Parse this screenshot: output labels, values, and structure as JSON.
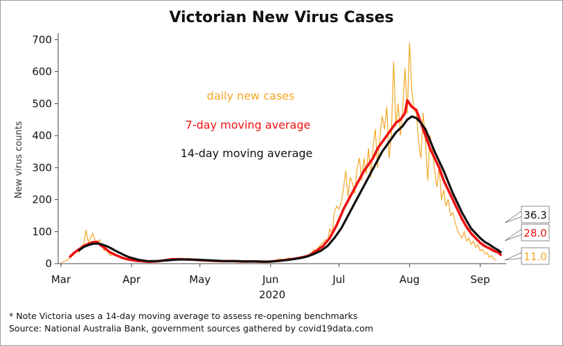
{
  "chart_data": {
    "type": "line",
    "title": "Victorian New Virus Cases",
    "ylabel": "New virus counts",
    "xlabel": "2020",
    "ylim": [
      0,
      720
    ],
    "xlim_day": [
      0,
      193
    ],
    "yticks": [
      0,
      100,
      200,
      300,
      400,
      500,
      600,
      700
    ],
    "xticks": [
      {
        "label": "Mar",
        "day": 0
      },
      {
        "label": "Apr",
        "day": 31
      },
      {
        "label": "May",
        "day": 61
      },
      {
        "label": "Jun",
        "day": 92
      },
      {
        "label": "Jul",
        "day": 122
      },
      {
        "label": "Aug",
        "day": 153
      },
      {
        "label": "Sep",
        "day": 184
      }
    ],
    "annotations": [
      {
        "text": "daily new cases",
        "color": "#f5a623"
      },
      {
        "text": "7-day moving average",
        "color": "#ee1111"
      },
      {
        "text": "14-day moving average",
        "color": "#111111"
      }
    ],
    "series": [
      {
        "name": "daily new cases",
        "color": "#f5a623",
        "points": [
          [
            0,
            3
          ],
          [
            2,
            8
          ],
          [
            4,
            18
          ],
          [
            5,
            25
          ],
          [
            6,
            30
          ],
          [
            7,
            40
          ],
          [
            8,
            35
          ],
          [
            9,
            55
          ],
          [
            10,
            60
          ],
          [
            11,
            105
          ],
          [
            12,
            68
          ],
          [
            13,
            80
          ],
          [
            14,
            95
          ],
          [
            15,
            70
          ],
          [
            16,
            65
          ],
          [
            17,
            75
          ],
          [
            18,
            60
          ],
          [
            19,
            40
          ],
          [
            20,
            50
          ],
          [
            21,
            30
          ],
          [
            22,
            25
          ],
          [
            23,
            35
          ],
          [
            24,
            28
          ],
          [
            26,
            20
          ],
          [
            28,
            14
          ],
          [
            30,
            12
          ],
          [
            32,
            9
          ],
          [
            34,
            7
          ],
          [
            36,
            6
          ],
          [
            38,
            5
          ],
          [
            40,
            8
          ],
          [
            42,
            6
          ],
          [
            44,
            7
          ],
          [
            46,
            10
          ],
          [
            48,
            14
          ],
          [
            50,
            15
          ],
          [
            52,
            14
          ],
          [
            54,
            12
          ],
          [
            56,
            17
          ],
          [
            58,
            13
          ],
          [
            60,
            12
          ],
          [
            62,
            10
          ],
          [
            64,
            10
          ],
          [
            66,
            9
          ],
          [
            68,
            8
          ],
          [
            70,
            7
          ],
          [
            72,
            8
          ],
          [
            74,
            9
          ],
          [
            76,
            7
          ],
          [
            78,
            6
          ],
          [
            80,
            8
          ],
          [
            82,
            8
          ],
          [
            84,
            7
          ],
          [
            86,
            6
          ],
          [
            88,
            5
          ],
          [
            90,
            5
          ],
          [
            92,
            8
          ],
          [
            94,
            10
          ],
          [
            96,
            15
          ],
          [
            98,
            12
          ],
          [
            100,
            18
          ],
          [
            102,
            14
          ],
          [
            104,
            20
          ],
          [
            106,
            22
          ],
          [
            108,
            25
          ],
          [
            110,
            33
          ],
          [
            111,
            45
          ],
          [
            112,
            40
          ],
          [
            113,
            50
          ],
          [
            114,
            60
          ],
          [
            115,
            65
          ],
          [
            116,
            75
          ],
          [
            117,
            70
          ],
          [
            118,
            110
          ],
          [
            119,
            90
          ],
          [
            120,
            160
          ],
          [
            121,
            180
          ],
          [
            122,
            170
          ],
          [
            123,
            190
          ],
          [
            124,
            235
          ],
          [
            125,
            290
          ],
          [
            126,
            210
          ],
          [
            127,
            270
          ],
          [
            128,
            250
          ],
          [
            129,
            220
          ],
          [
            130,
            300
          ],
          [
            131,
            330
          ],
          [
            132,
            260
          ],
          [
            133,
            330
          ],
          [
            134,
            280
          ],
          [
            135,
            360
          ],
          [
            136,
            270
          ],
          [
            137,
            370
          ],
          [
            138,
            420
          ],
          [
            139,
            300
          ],
          [
            140,
            400
          ],
          [
            141,
            460
          ],
          [
            142,
            420
          ],
          [
            143,
            490
          ],
          [
            144,
            330
          ],
          [
            145,
            400
          ],
          [
            146,
            630
          ],
          [
            147,
            430
          ],
          [
            148,
            500
          ],
          [
            149,
            400
          ],
          [
            150,
            480
          ],
          [
            151,
            610
          ],
          [
            152,
            470
          ],
          [
            153,
            690
          ],
          [
            154,
            540
          ],
          [
            155,
            480
          ],
          [
            156,
            470
          ],
          [
            157,
            380
          ],
          [
            158,
            330
          ],
          [
            159,
            470
          ],
          [
            160,
            380
          ],
          [
            161,
            260
          ],
          [
            162,
            400
          ],
          [
            163,
            360
          ],
          [
            164,
            290
          ],
          [
            165,
            240
          ],
          [
            166,
            300
          ],
          [
            167,
            200
          ],
          [
            168,
            230
          ],
          [
            169,
            180
          ],
          [
            170,
            200
          ],
          [
            171,
            150
          ],
          [
            172,
            160
          ],
          [
            173,
            130
          ],
          [
            174,
            105
          ],
          [
            175,
            90
          ],
          [
            176,
            80
          ],
          [
            177,
            100
          ],
          [
            178,
            70
          ],
          [
            179,
            80
          ],
          [
            180,
            60
          ],
          [
            181,
            70
          ],
          [
            182,
            50
          ],
          [
            183,
            60
          ],
          [
            184,
            40
          ],
          [
            185,
            45
          ],
          [
            186,
            30
          ],
          [
            187,
            35
          ],
          [
            188,
            20
          ],
          [
            189,
            25
          ],
          [
            190,
            15
          ],
          [
            191,
            11
          ]
        ]
      },
      {
        "name": "7-day moving average",
        "color": "#ee1111",
        "points": [
          [
            4,
            22
          ],
          [
            6,
            35
          ],
          [
            8,
            45
          ],
          [
            10,
            55
          ],
          [
            12,
            62
          ],
          [
            14,
            67
          ],
          [
            16,
            68
          ],
          [
            17,
            60
          ],
          [
            19,
            50
          ],
          [
            21,
            38
          ],
          [
            23,
            30
          ],
          [
            25,
            24
          ],
          [
            27,
            18
          ],
          [
            29,
            14
          ],
          [
            31,
            11
          ],
          [
            33,
            9
          ],
          [
            35,
            8
          ],
          [
            37,
            7
          ],
          [
            39,
            6
          ],
          [
            41,
            7
          ],
          [
            43,
            8
          ],
          [
            45,
            10
          ],
          [
            47,
            12
          ],
          [
            49,
            14
          ],
          [
            51,
            14
          ],
          [
            53,
            14
          ],
          [
            55,
            13
          ],
          [
            57,
            13
          ],
          [
            59,
            12
          ],
          [
            61,
            11
          ],
          [
            64,
            10
          ],
          [
            67,
            9
          ],
          [
            70,
            8
          ],
          [
            73,
            8
          ],
          [
            76,
            8
          ],
          [
            79,
            7
          ],
          [
            82,
            7
          ],
          [
            85,
            7
          ],
          [
            88,
            6
          ],
          [
            91,
            6
          ],
          [
            94,
            8
          ],
          [
            97,
            10
          ],
          [
            100,
            13
          ],
          [
            103,
            16
          ],
          [
            106,
            20
          ],
          [
            109,
            26
          ],
          [
            112,
            40
          ],
          [
            115,
            55
          ],
          [
            118,
            80
          ],
          [
            121,
            120
          ],
          [
            124,
            170
          ],
          [
            127,
            210
          ],
          [
            130,
            250
          ],
          [
            133,
            290
          ],
          [
            135,
            310
          ],
          [
            137,
            330
          ],
          [
            139,
            360
          ],
          [
            141,
            380
          ],
          [
            143,
            400
          ],
          [
            145,
            420
          ],
          [
            147,
            440
          ],
          [
            149,
            450
          ],
          [
            151,
            470
          ],
          [
            152,
            510
          ],
          [
            154,
            490
          ],
          [
            156,
            480
          ],
          [
            158,
            440
          ],
          [
            160,
            400
          ],
          [
            162,
            360
          ],
          [
            164,
            330
          ],
          [
            166,
            300
          ],
          [
            168,
            260
          ],
          [
            170,
            230
          ],
          [
            172,
            200
          ],
          [
            174,
            170
          ],
          [
            176,
            140
          ],
          [
            178,
            115
          ],
          [
            180,
            95
          ],
          [
            182,
            80
          ],
          [
            184,
            65
          ],
          [
            186,
            55
          ],
          [
            188,
            48
          ],
          [
            190,
            40
          ],
          [
            192,
            35
          ],
          [
            193,
            28
          ]
        ]
      },
      {
        "name": "14-day moving average",
        "color": "#111111",
        "points": [
          [
            8,
            42
          ],
          [
            10,
            52
          ],
          [
            12,
            58
          ],
          [
            14,
            62
          ],
          [
            16,
            63
          ],
          [
            18,
            60
          ],
          [
            20,
            55
          ],
          [
            22,
            48
          ],
          [
            24,
            40
          ],
          [
            26,
            33
          ],
          [
            28,
            26
          ],
          [
            30,
            20
          ],
          [
            32,
            16
          ],
          [
            34,
            12
          ],
          [
            36,
            10
          ],
          [
            38,
            8
          ],
          [
            40,
            8
          ],
          [
            42,
            8
          ],
          [
            44,
            9
          ],
          [
            46,
            10
          ],
          [
            48,
            11
          ],
          [
            50,
            12
          ],
          [
            52,
            13
          ],
          [
            54,
            13
          ],
          [
            56,
            13
          ],
          [
            58,
            12
          ],
          [
            60,
            12
          ],
          [
            63,
            11
          ],
          [
            66,
            10
          ],
          [
            69,
            9
          ],
          [
            72,
            8
          ],
          [
            75,
            8
          ],
          [
            78,
            8
          ],
          [
            81,
            7
          ],
          [
            84,
            7
          ],
          [
            87,
            7
          ],
          [
            90,
            6
          ],
          [
            93,
            7
          ],
          [
            96,
            9
          ],
          [
            99,
            11
          ],
          [
            102,
            14
          ],
          [
            105,
            17
          ],
          [
            108,
            22
          ],
          [
            111,
            30
          ],
          [
            114,
            40
          ],
          [
            117,
            55
          ],
          [
            120,
            80
          ],
          [
            123,
            110
          ],
          [
            126,
            150
          ],
          [
            129,
            190
          ],
          [
            132,
            230
          ],
          [
            135,
            270
          ],
          [
            138,
            310
          ],
          [
            141,
            350
          ],
          [
            144,
            380
          ],
          [
            147,
            410
          ],
          [
            150,
            430
          ],
          [
            152,
            450
          ],
          [
            154,
            460
          ],
          [
            156,
            455
          ],
          [
            158,
            440
          ],
          [
            160,
            420
          ],
          [
            162,
            385
          ],
          [
            164,
            350
          ],
          [
            166,
            320
          ],
          [
            168,
            290
          ],
          [
            170,
            255
          ],
          [
            172,
            220
          ],
          [
            174,
            190
          ],
          [
            176,
            160
          ],
          [
            178,
            135
          ],
          [
            180,
            110
          ],
          [
            182,
            95
          ],
          [
            184,
            80
          ],
          [
            186,
            68
          ],
          [
            188,
            60
          ],
          [
            190,
            50
          ],
          [
            192,
            42
          ],
          [
            193,
            36
          ]
        ]
      }
    ],
    "end_values": [
      {
        "label": "36.3",
        "series": "14-day moving average",
        "color": "#111111",
        "y": 36.3
      },
      {
        "label": "28.0",
        "series": "7-day moving average",
        "color": "#ee1111",
        "y": 28.0
      },
      {
        "label": "11.0",
        "series": "daily new cases",
        "color": "#f5a623",
        "y": 11.0
      }
    ]
  },
  "footnotes": {
    "line1": "* Note Victoria uses a 14-day moving average to assess re-opening benchmarks",
    "line2": "Source: National Australia Bank, government sources gathered by covid19data.com"
  }
}
